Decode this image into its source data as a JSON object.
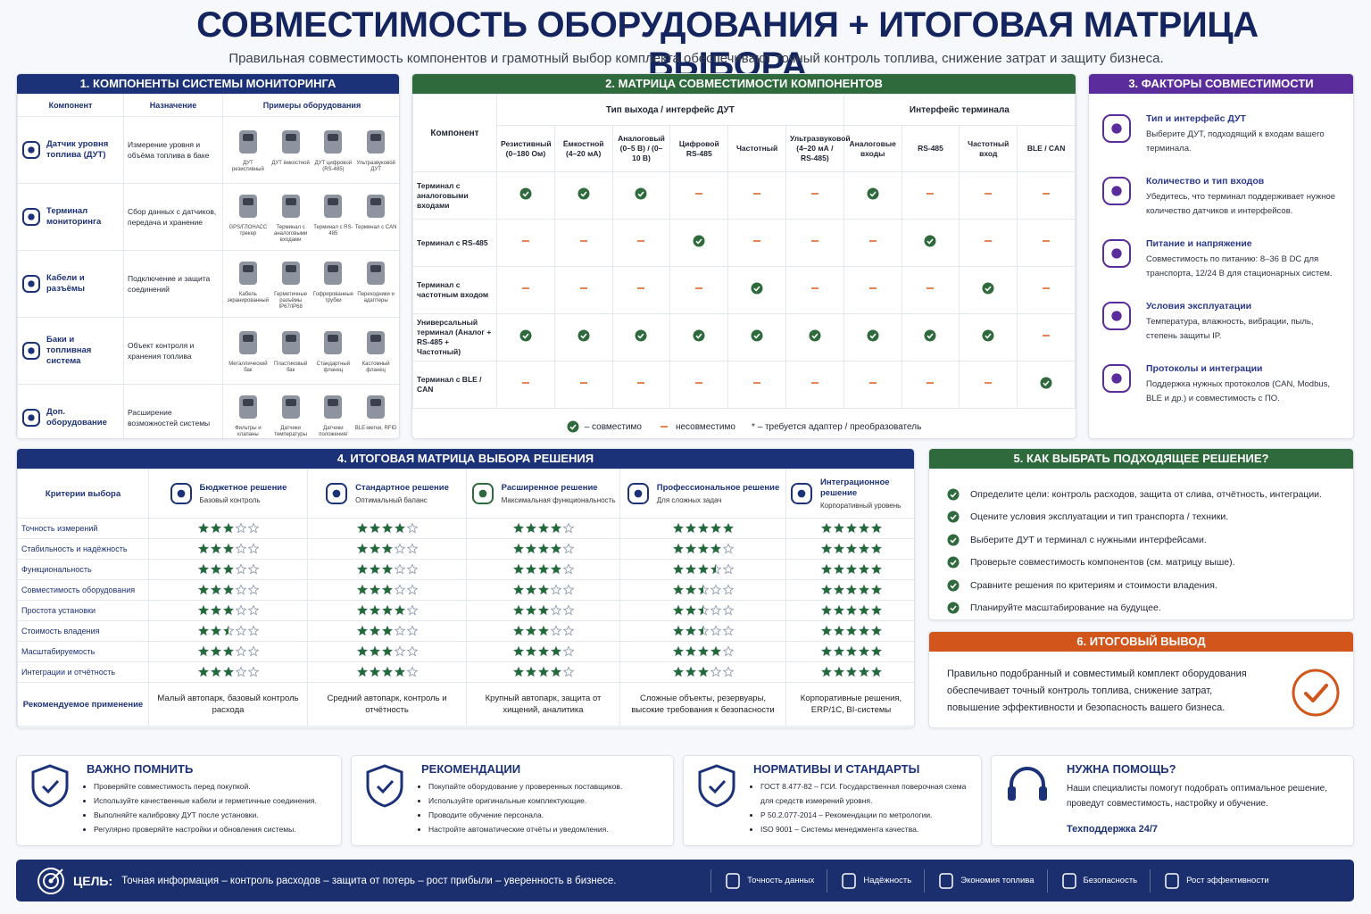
{
  "header": {
    "title": "СОВМЕСТИМОСТЬ ОБОРУДОВАНИЯ + ИТОГОВАЯ МАТРИЦА ВЫБОРА",
    "subtitle": "Правильная совместимость компонентов и грамотный выбор комплекта обеспечивают точный контроль топлива, снижение затрат и защиту бизнеса."
  },
  "components": {
    "title": "1. КОМПОНЕНТЫ СИСТЕМЫ МОНИТОРИНГА",
    "columns": [
      "Компонент",
      "Назначение",
      "Примеры оборудования"
    ],
    "rows": [
      {
        "name": "Датчик уровня топлива (ДУТ)",
        "purpose": "Измерение уровня и объёма топлива в баке",
        "examples": [
          "ДУТ резистивный",
          "ДУТ ёмкостной",
          "ДУТ цифровой (RS-485)",
          "Ультразвуковой ДУТ"
        ]
      },
      {
        "name": "Терминал мониторинга",
        "purpose": "Сбор данных с датчиков, передача и хранение",
        "examples": [
          "GPS/ГЛОНАСС трекер",
          "Терминал с аналоговыми входами",
          "Терминал с RS-485",
          "Терминал с CAN"
        ]
      },
      {
        "name": "Кабели и разъёмы",
        "purpose": "Подключение и защита соединений",
        "examples": [
          "Кабель экранированный",
          "Герметичные разъёмы IP67/IP68",
          "Гофрированные трубки",
          "Переходники и адаптеры"
        ]
      },
      {
        "name": "Баки и топливная система",
        "purpose": "Объект контроля и хранения топлива",
        "examples": [
          "Металлический бак",
          "Пластиковый бак",
          "Стандартный фланец",
          "Кастомный фланец"
        ]
      },
      {
        "name": "Доп. оборудование",
        "purpose": "Расширение возможностей системы",
        "examples": [
          "Фильтры и клапаны",
          "Датчики температуры",
          "Датчики положения/ движения",
          "BLE-метки, RFID"
        ]
      }
    ]
  },
  "matrix": {
    "title": "2. МАТРИЦА СОВМЕСТИМОСТИ КОМПОНЕНТОВ",
    "component_header": "Компонент",
    "groups": [
      {
        "label": "Тип выхода / интерфейс ДУТ",
        "columns": [
          "Резистивный (0–180 Ом)",
          "Ёмкостной (4–20 мА)",
          "Аналоговый (0–5 В) / (0–10 В)",
          "Цифровой RS-485",
          "Частотный",
          "Ультразвуковой (4–20 мА / RS-485)"
        ]
      },
      {
        "label": "Интерфейс терминала",
        "columns": [
          "Аналоговые входы",
          "RS-485",
          "Частотный вход",
          "BLE / CAN"
        ]
      }
    ],
    "rows": [
      {
        "name": "Терминал с аналоговыми входами",
        "cells": [
          true,
          true,
          true,
          false,
          false,
          false,
          true,
          false,
          false,
          false
        ]
      },
      {
        "name": "Терминал с RS-485",
        "cells": [
          false,
          false,
          false,
          true,
          false,
          false,
          false,
          true,
          false,
          false
        ]
      },
      {
        "name": "Терминал с частотным входом",
        "cells": [
          false,
          false,
          false,
          false,
          true,
          false,
          false,
          false,
          true,
          false
        ]
      },
      {
        "name": "Универсальный терминал (Аналог + RS-485 + Частотный)",
        "cells": [
          true,
          true,
          true,
          true,
          true,
          true,
          true,
          true,
          true,
          false
        ]
      },
      {
        "name": "Терминал с BLE / CAN",
        "cells": [
          false,
          false,
          false,
          false,
          false,
          false,
          false,
          false,
          false,
          true
        ]
      }
    ],
    "legend": [
      {
        "kind": "ok",
        "label": "– совместимо"
      },
      {
        "kind": "no",
        "label": "несовместимо"
      },
      {
        "kind": "note",
        "label": "* – требуется адаптер / преобразователь"
      }
    ]
  },
  "factors": {
    "title": "3. ФАКТОРЫ СОВМЕСТИМОСТИ",
    "items": [
      {
        "title": "Тип и интерфейс ДУТ",
        "text": "Выберите ДУТ, подходящий к входам вашего терминала."
      },
      {
        "title": "Количество и тип входов",
        "text": "Убедитесь, что терминал поддерживает нужное количество датчиков и интерфейсов."
      },
      {
        "title": "Питание и напряжение",
        "text": "Совместимость по питанию: 8–36 В DC для транспорта, 12/24 В для стационарных систем."
      },
      {
        "title": "Условия эксплуатации",
        "text": "Температура, влажность, вибрации, пыль, степень защиты IP."
      },
      {
        "title": "Протоколы и интеграции",
        "text": "Поддержка нужных протоколов (CAN, Modbus, BLE и др.) и совместимость с ПО."
      }
    ]
  },
  "selection": {
    "title": "4. ИТОГОВАЯ МАТРИЦА ВЫБОРА РЕШЕНИЯ",
    "criteria_header": "Критерии выбора",
    "rating_max": 5,
    "solutions": [
      {
        "name": "Бюджетное решение",
        "subtitle": "Базовый контроль"
      },
      {
        "name": "Стандартное решение",
        "subtitle": "Оптимальный баланс"
      },
      {
        "name": "Расширенное решение",
        "subtitle": "Максимальная функциональность"
      },
      {
        "name": "Профессиональное решение",
        "subtitle": "Для сложных задач"
      },
      {
        "name": "Интеграционное решение",
        "subtitle": "Корпоративный уровень"
      }
    ],
    "criteria": [
      {
        "name": "Точность измерений",
        "ratings": [
          3,
          4,
          4,
          5,
          5
        ]
      },
      {
        "name": "Стабильность и надёжность",
        "ratings": [
          3,
          3,
          4,
          4,
          5
        ]
      },
      {
        "name": "Функциональность",
        "ratings": [
          3,
          3,
          4,
          3.5,
          5
        ]
      },
      {
        "name": "Совместимость оборудования",
        "ratings": [
          3,
          3,
          3,
          2.5,
          5
        ]
      },
      {
        "name": "Простота установки",
        "ratings": [
          3,
          4,
          3,
          2.5,
          5
        ]
      },
      {
        "name": "Стоимость владения",
        "ratings": [
          2.5,
          3,
          3,
          2.5,
          5
        ]
      },
      {
        "name": "Масштабируемость",
        "ratings": [
          3,
          3,
          4,
          4,
          5
        ]
      },
      {
        "name": "Интеграции и отчётность",
        "ratings": [
          3,
          4,
          4,
          3,
          5
        ]
      }
    ],
    "recommended": {
      "label": "Рекомендуемое применение",
      "values": [
        "Малый автопарк, базовый контроль расхода",
        "Средний автопарк, контроль и отчётность",
        "Крупный автопарк, защита от хищений, аналитика",
        "Сложные объекты, резервуары, высокие требования к безопасности",
        "Корпоративные решения, ERP/1С, BI-системы"
      ]
    }
  },
  "howto": {
    "title": "5. КАК ВЫБРАТЬ ПОДХОДЯЩЕЕ РЕШЕНИЕ?",
    "steps": [
      "Определите цели: контроль расходов, защита от слива, отчётность, интеграции.",
      "Оцените условия эксплуатации и тип транспорта / техники.",
      "Выберите ДУТ и терминал с нужными интерфейсами.",
      "Проверьте совместимость компонентов (см. матрицу выше).",
      "Сравните решения по критериям и стоимости владения.",
      "Планируйте масштабирование на будущее."
    ]
  },
  "conclusion": {
    "title": "6. ИТОГОВЫЙ ВЫВОД",
    "text": "Правильно подобранный и совместимый комплект оборудования обеспечивает точный контроль топлива, снижение затрат, повышение эффективности и безопасность вашего бизнеса."
  },
  "notes": [
    {
      "title": "ВАЖНО ПОМНИТЬ",
      "items": [
        "Проверяйте совместимость перед покупкой.",
        "Используйте качественные кабели и герметичные соединения.",
        "Выполняйте калибровку ДУТ после установки.",
        "Регулярно проверяйте настройки и обновления системы."
      ]
    },
    {
      "title": "РЕКОМЕНДАЦИИ",
      "items": [
        "Покупайте оборудование у проверенных поставщиков.",
        "Используйте оригинальные комплектующие.",
        "Проводите обучение персонала.",
        "Настройте автоматические отчёты и уведомления."
      ]
    },
    {
      "title": "НОРМАТИВЫ И СТАНДАРТЫ",
      "items": [
        "ГОСТ 8.477-82 – ГСИ. Государственная поверочная схема для средств измерений уровня.",
        "Р 50.2.077-2014 – Рекомендации по метрологии.",
        "ISO 9001 – Системы менеджмента качества."
      ]
    }
  ],
  "help": {
    "title": "НУЖНА ПОМОЩЬ?",
    "text": "Наши специалисты помогут подобрать оптимальное решение, проведут совместимость, настройку и обучение.",
    "link": "Техподдержка 24/7"
  },
  "footer": {
    "label": "ЦЕЛЬ:",
    "text": "Точная информация – контроль расходов – защита от потерь – рост прибыли – уверенность в бизнесе.",
    "badges": [
      "Точность данных",
      "Надёжность",
      "Экономия топлива",
      "Безопасность",
      "Рост эффективности"
    ]
  }
}
